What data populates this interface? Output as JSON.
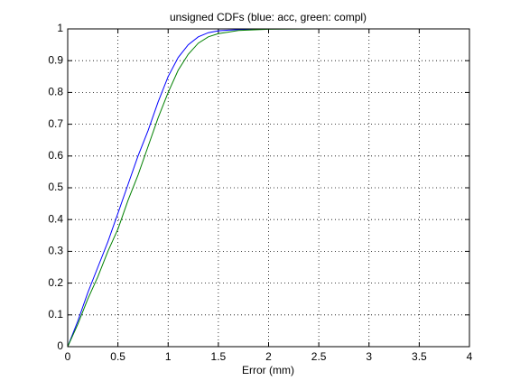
{
  "chart_data": {
    "type": "line",
    "title": "unsigned CDFs (blue: acc, green: compl)",
    "x_label": "Error (mm)",
    "series": [
      {
        "name": "acc",
        "color": "#0000ff",
        "x": [
          0,
          0.1,
          0.2,
          0.3,
          0.4,
          0.5,
          0.6,
          0.7,
          0.8,
          0.9,
          1.0,
          1.1,
          1.2,
          1.3,
          1.4,
          1.5,
          1.7,
          2.0,
          2.25
        ],
        "values": [
          0,
          0.08,
          0.17,
          0.25,
          0.33,
          0.42,
          0.51,
          0.6,
          0.68,
          0.77,
          0.85,
          0.91,
          0.95,
          0.975,
          0.988,
          0.994,
          0.998,
          1,
          1
        ]
      },
      {
        "name": "compl",
        "color": "#008000",
        "x": [
          0,
          0.1,
          0.2,
          0.3,
          0.4,
          0.5,
          0.6,
          0.7,
          0.8,
          0.9,
          1.0,
          1.1,
          1.2,
          1.3,
          1.4,
          1.5,
          1.7,
          2.0,
          2.5,
          4
        ],
        "values": [
          0,
          0.07,
          0.15,
          0.22,
          0.3,
          0.37,
          0.46,
          0.54,
          0.63,
          0.72,
          0.8,
          0.87,
          0.92,
          0.955,
          0.975,
          0.985,
          0.995,
          0.999,
          1,
          1
        ]
      }
    ],
    "xlim": [
      0,
      4
    ],
    "xticks": [
      0,
      0.5,
      1,
      1.5,
      2,
      2.5,
      3,
      3.5,
      4
    ],
    "ylim": [
      0,
      1
    ],
    "yticks": [
      0,
      0.1,
      0.2,
      0.3,
      0.4,
      0.5,
      0.6,
      0.7,
      0.8,
      0.9,
      1
    ],
    "grid": true
  }
}
